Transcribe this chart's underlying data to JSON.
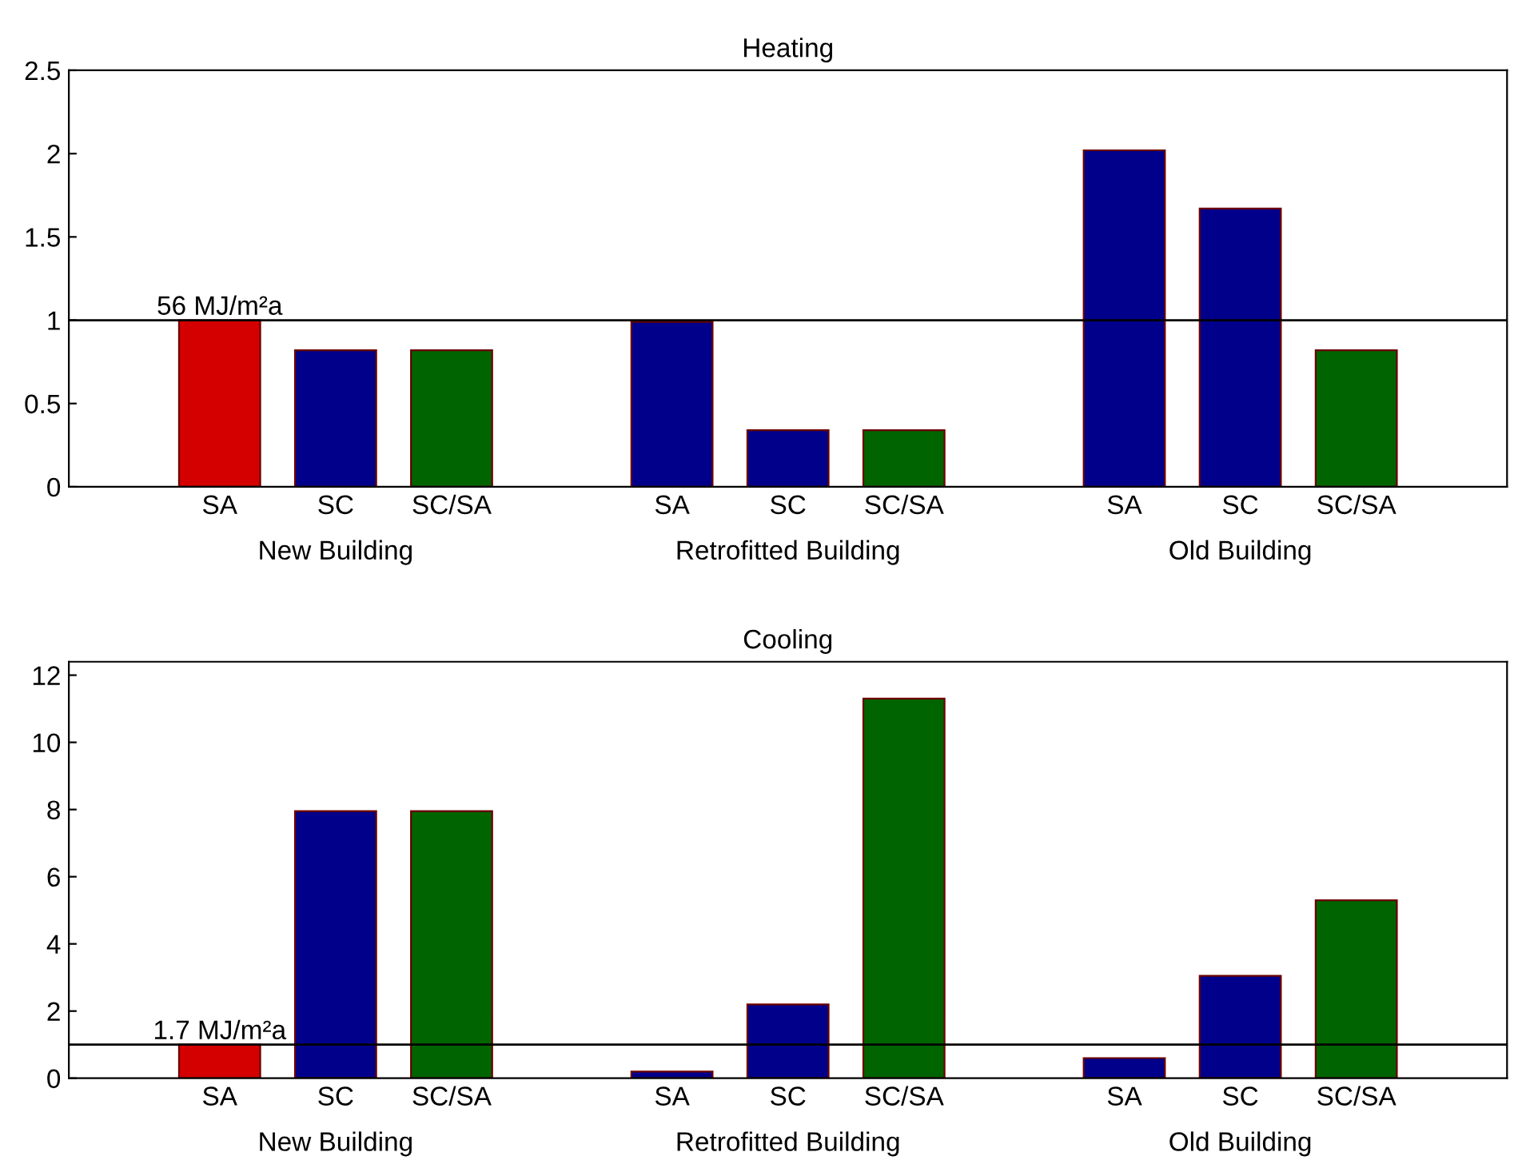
{
  "chart_data": [
    {
      "type": "bar",
      "title": "Heating",
      "categories": [
        "SA",
        "SC",
        "SC/SA",
        "SA",
        "SC",
        "SC/SA",
        "SA",
        "SC",
        "SC/SA"
      ],
      "values": [
        1.0,
        0.82,
        0.82,
        0.99,
        0.34,
        0.34,
        2.02,
        1.67,
        0.82
      ],
      "colors": [
        "#d40000",
        "#00008b",
        "#006400",
        "#00008b",
        "#00008b",
        "#006400",
        "#00008b",
        "#00008b",
        "#006400"
      ],
      "annotations": [
        "New Building",
        "Retrofitted Building",
        "Old Building"
      ],
      "ref_lines": [
        {
          "axis": "y",
          "value": 1,
          "label": "56 MJ/m²a",
          "color": "#000000"
        }
      ],
      "ylim": [
        0,
        2.5
      ],
      "yticks": [
        0,
        0.5,
        1,
        1.5,
        2,
        2.5
      ],
      "grid": false,
      "legend": false
    },
    {
      "type": "bar",
      "title": "Cooling",
      "categories": [
        "SA",
        "SC",
        "SC/SA",
        "SA",
        "SC",
        "SC/SA",
        "SA",
        "SC",
        "SC/SA"
      ],
      "values": [
        1.0,
        7.95,
        7.95,
        0.2,
        2.2,
        11.3,
        0.6,
        3.05,
        5.3
      ],
      "colors": [
        "#d40000",
        "#00008b",
        "#006400",
        "#00008b",
        "#00008b",
        "#006400",
        "#00008b",
        "#00008b",
        "#006400"
      ],
      "annotations": [
        "New Building",
        "Retrofitted Building",
        "Old Building"
      ],
      "ref_lines": [
        {
          "axis": "y",
          "value": 1,
          "label": "1.7 MJ/m²a",
          "color": "#000000"
        }
      ],
      "ylim": [
        0,
        12.4
      ],
      "yticks": [
        0,
        2,
        4,
        6,
        8,
        10,
        12
      ],
      "grid": false,
      "legend": false
    }
  ]
}
